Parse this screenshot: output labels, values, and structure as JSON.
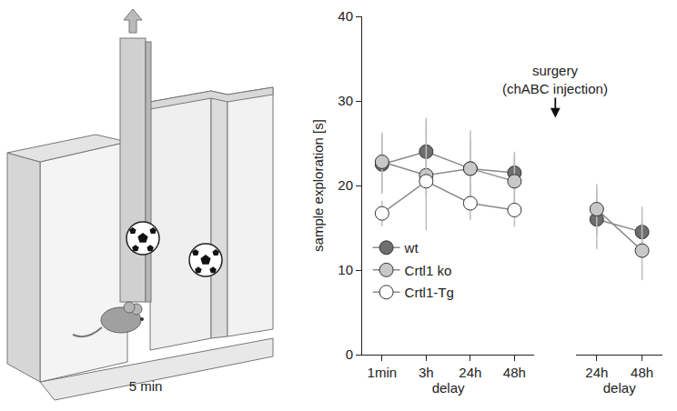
{
  "illustration": {
    "label": "5 min"
  },
  "chart_data": {
    "type": "line",
    "y_label": "sample exploration [s]",
    "x_label": "delay",
    "annotation": {
      "lines": [
        "surgery",
        "(chABC injection)"
      ]
    },
    "categories": [
      "1min",
      "3h",
      "24h",
      "48h",
      null,
      "24h",
      "48h"
    ],
    "series": [
      {
        "name": "wt",
        "color": "#6e6e6e",
        "marker": "circle",
        "values": [
          22.5,
          24,
          22,
          21.5,
          null,
          16,
          14.5
        ],
        "errors": [
          3.5,
          4,
          3.5,
          2.5,
          null,
          3.5,
          3
        ]
      },
      {
        "name": "Crtl1 ko",
        "color": "#c8c8c8",
        "marker": "circle",
        "values": [
          22.8,
          21.2,
          22,
          20.5,
          null,
          17.2,
          12.3
        ],
        "errors": [
          3.5,
          6.5,
          4.5,
          3,
          null,
          3,
          3.5
        ]
      },
      {
        "name": "Crtl1-Tg",
        "color": "#ffffff",
        "marker": "circle",
        "values": [
          16.7,
          20.5,
          17.9,
          17.1,
          null,
          null,
          null
        ],
        "errors": [
          1.5,
          2,
          2,
          2,
          null,
          null,
          null
        ]
      }
    ],
    "ylim": [
      0,
      40
    ],
    "yticks": [
      0,
      10,
      20,
      30,
      40
    ],
    "grid": false,
    "legend": "left"
  }
}
